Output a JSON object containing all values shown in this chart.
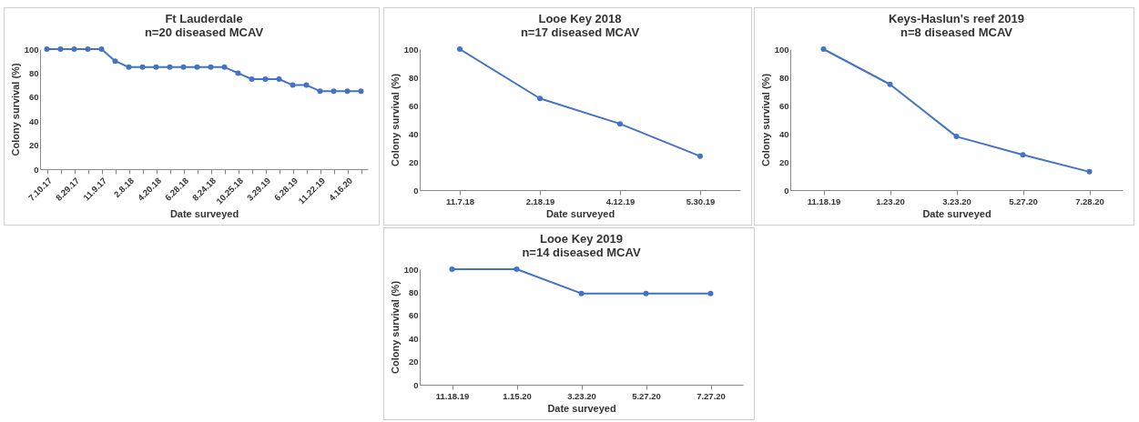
{
  "chart_data": [
    {
      "type": "line",
      "title": "Ft Lauderdale",
      "subtitle": "n=20 diseased MCAV",
      "xlabel": "Date surveyed",
      "ylabel": "Colony survival (%)",
      "categories": [
        "7.10.17",
        null,
        "8.29.17",
        null,
        "11.9.17",
        null,
        "2.8.18",
        null,
        "4.20.18",
        null,
        "6.28.18",
        null,
        "8.24.18",
        null,
        "10.25.18",
        null,
        "3.29.19",
        null,
        "6.28.19",
        null,
        "11.22.19",
        null,
        "4.16.20",
        null
      ],
      "series": [
        {
          "color": "#4472c4",
          "values": [
            100,
            100,
            100,
            100,
            100,
            90,
            85,
            85,
            85,
            85,
            85,
            85,
            85,
            85,
            80,
            75,
            75,
            75,
            70,
            70,
            65,
            65,
            65,
            65
          ]
        }
      ],
      "ylim": [
        0,
        100
      ],
      "yticks": [
        0,
        20,
        40,
        60,
        80,
        100
      ],
      "marker": "circle"
    },
    {
      "type": "line",
      "title": "Looe Key 2018",
      "subtitle": "n=17 diseased MCAV",
      "xlabel": "Date surveyed",
      "ylabel": "Colony survival (%)",
      "categories": [
        "11.7.18",
        "2.18.19",
        "4.12.19",
        "5.30.19"
      ],
      "series": [
        {
          "color": "#4472c4",
          "values": [
            100,
            65,
            47,
            24
          ]
        }
      ],
      "ylim": [
        0,
        100
      ],
      "yticks": [
        0,
        20,
        40,
        60,
        80,
        100
      ],
      "marker": "circle"
    },
    {
      "type": "line",
      "title": "Keys-Haslun's reef 2019",
      "subtitle": "n=8 diseased MCAV",
      "xlabel": "Date surveyed",
      "ylabel": "Colony survival (%)",
      "categories": [
        "11.18.19",
        "1.23.20",
        "3.23.20",
        "5.27.20",
        "7.28.20"
      ],
      "series": [
        {
          "color": "#4472c4",
          "values": [
            100,
            75,
            38,
            25,
            13
          ]
        }
      ],
      "ylim": [
        0,
        100
      ],
      "yticks": [
        0,
        20,
        40,
        60,
        80,
        100
      ],
      "marker": "circle"
    },
    {
      "type": "line",
      "title": "Looe Key 2019",
      "subtitle": "n=14 diseased MCAV",
      "xlabel": "Date surveyed",
      "ylabel": "Colony survival (%)",
      "categories": [
        "11.18.19",
        "1.15.20",
        "3.23.20",
        "5.27.20",
        "7.27.20"
      ],
      "series": [
        {
          "color": "#4472c4",
          "values": [
            100,
            100,
            79,
            79,
            79
          ]
        }
      ],
      "ylim": [
        0,
        100
      ],
      "yticks": [
        0,
        20,
        40,
        60,
        80,
        100
      ],
      "marker": "circle"
    }
  ]
}
